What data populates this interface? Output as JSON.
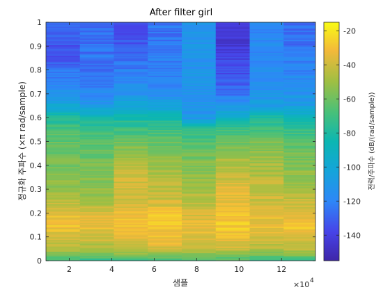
{
  "chart_data": {
    "type": "heatmap",
    "title": "After filter girl",
    "xlabel": "샘플",
    "ylabel": "정규화 주파수 (×π rad/sample)",
    "x_exponent_label": "×10",
    "x_exponent_power": "4",
    "xlim": [
      0.9,
      13.6
    ],
    "ylim": [
      0,
      1
    ],
    "x_ticks": [
      2,
      4,
      6,
      8,
      10,
      12
    ],
    "x_tick_labels": [
      "2",
      "4",
      "6",
      "8",
      "10",
      "12"
    ],
    "y_ticks": [
      0,
      0.1,
      0.2,
      0.3,
      0.4,
      0.5,
      0.6,
      0.7,
      0.8,
      0.9,
      1
    ],
    "y_tick_labels": [
      "0",
      "0.1",
      "0.2",
      "0.3",
      "0.4",
      "0.5",
      "0.6",
      "0.7",
      "0.8",
      "0.9",
      "1"
    ],
    "colorbar": {
      "label": "전력/주파수 (dB/(rad/sample))",
      "range": [
        -155,
        -15
      ],
      "ticks": [
        -140,
        -120,
        -100,
        -80,
        -60,
        -40,
        -20
      ],
      "tick_labels": [
        "-140",
        "-120",
        "-100",
        "-80",
        "-60",
        "-40",
        "-20"
      ],
      "colormap": "parula"
    },
    "time_segments": [
      {
        "x_start": 0.9,
        "x_end": 2.5
      },
      {
        "x_start": 2.5,
        "x_end": 4.1
      },
      {
        "x_start": 4.1,
        "x_end": 5.7
      },
      {
        "x_start": 5.7,
        "x_end": 7.3
      },
      {
        "x_start": 7.3,
        "x_end": 8.9
      },
      {
        "x_start": 8.9,
        "x_end": 10.5
      },
      {
        "x_start": 10.5,
        "x_end": 12.1
      },
      {
        "x_start": 12.1,
        "x_end": 13.6
      }
    ],
    "frequency_profile_db": [
      {
        "freq": 0.0,
        "segments": [
          -70,
          -75,
          -72,
          -70,
          -68,
          -70,
          -74,
          -72
        ]
      },
      {
        "freq": 0.05,
        "segments": [
          -45,
          -48,
          -40,
          -38,
          -42,
          -40,
          -45,
          -44
        ]
      },
      {
        "freq": 0.1,
        "segments": [
          -38,
          -40,
          -35,
          -32,
          -35,
          -32,
          -38,
          -36
        ]
      },
      {
        "freq": 0.15,
        "segments": [
          -30,
          -32,
          -30,
          -28,
          -35,
          -28,
          -32,
          -30
        ]
      },
      {
        "freq": 0.2,
        "segments": [
          -35,
          -38,
          -32,
          -30,
          -38,
          -30,
          -34,
          -35
        ]
      },
      {
        "freq": 0.25,
        "segments": [
          -45,
          -48,
          -38,
          -40,
          -45,
          -35,
          -40,
          -42
        ]
      },
      {
        "freq": 0.3,
        "segments": [
          -50,
          -52,
          -38,
          -42,
          -48,
          -35,
          -42,
          -48
        ]
      },
      {
        "freq": 0.35,
        "segments": [
          -55,
          -55,
          -40,
          -45,
          -52,
          -40,
          -45,
          -52
        ]
      },
      {
        "freq": 0.4,
        "segments": [
          -58,
          -58,
          -45,
          -50,
          -55,
          -45,
          -48,
          -55
        ]
      },
      {
        "freq": 0.45,
        "segments": [
          -60,
          -62,
          -50,
          -55,
          -60,
          -50,
          -50,
          -58
        ]
      },
      {
        "freq": 0.5,
        "segments": [
          -62,
          -65,
          -60,
          -62,
          -66,
          -62,
          -58,
          -65
        ]
      },
      {
        "freq": 0.55,
        "segments": [
          -68,
          -72,
          -70,
          -70,
          -75,
          -72,
          -68,
          -72
        ]
      },
      {
        "freq": 0.6,
        "segments": [
          -78,
          -82,
          -80,
          -82,
          -110,
          -90,
          -80,
          -85
        ]
      },
      {
        "freq": 0.65,
        "segments": [
          -100,
          -110,
          -100,
          -105,
          -112,
          -110,
          -105,
          -105
        ]
      },
      {
        "freq": 0.7,
        "segments": [
          -110,
          -118,
          -112,
          -115,
          -112,
          -125,
          -112,
          -112
        ]
      },
      {
        "freq": 0.75,
        "segments": [
          -118,
          -122,
          -118,
          -120,
          -112,
          -132,
          -115,
          -118
        ]
      },
      {
        "freq": 0.8,
        "segments": [
          -125,
          -125,
          -122,
          -122,
          -112,
          -135,
          -115,
          -120
        ]
      },
      {
        "freq": 0.85,
        "segments": [
          -132,
          -125,
          -128,
          -122,
          -112,
          -138,
          -118,
          -122
        ]
      },
      {
        "freq": 0.9,
        "segments": [
          -134,
          -126,
          -132,
          -124,
          -112,
          -142,
          -118,
          -125
        ]
      },
      {
        "freq": 0.95,
        "segments": [
          -132,
          -126,
          -135,
          -125,
          -112,
          -145,
          -118,
          -126
        ]
      },
      {
        "freq": 1.0,
        "segments": [
          -130,
          -125,
          -133,
          -124,
          -112,
          -145,
          -118,
          -126
        ]
      }
    ]
  }
}
